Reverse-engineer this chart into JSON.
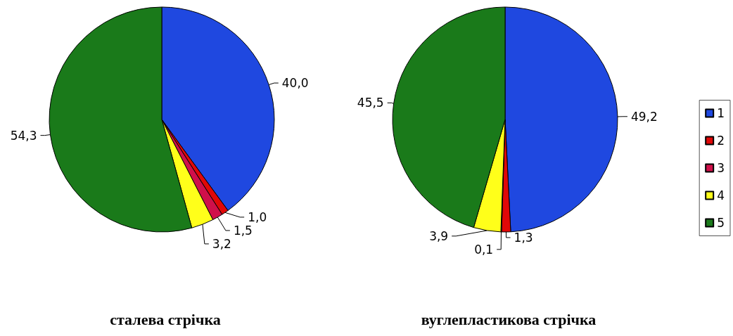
{
  "chart_data": [
    {
      "type": "pie",
      "title": "сталева стрічка",
      "categories": [
        "1",
        "2",
        "3",
        "4",
        "5"
      ],
      "values": [
        40.0,
        1.0,
        1.5,
        3.2,
        54.3
      ],
      "value_labels": [
        "40,0",
        "1,0",
        "1,5",
        "3,2",
        "54,3"
      ],
      "colors": [
        "#1f48e0",
        "#e00808",
        "#d0104a",
        "#ffff1a",
        "#1a7a1a"
      ],
      "legend": "right"
    },
    {
      "type": "pie",
      "title": "вуглепластикова стрічка",
      "categories": [
        null,
        null,
        null,
        null,
        null
      ],
      "values": [
        49.2,
        1.3,
        0.1,
        3.9,
        45.5
      ],
      "value_labels": [
        "49,2",
        "1,3",
        "0,1",
        "3,9",
        "45,5"
      ],
      "colors": [
        "#1f48e0",
        "#e00808",
        "#d0104a",
        "#ffff1a",
        "#1a7a1a"
      ],
      "legend": false
    }
  ]
}
